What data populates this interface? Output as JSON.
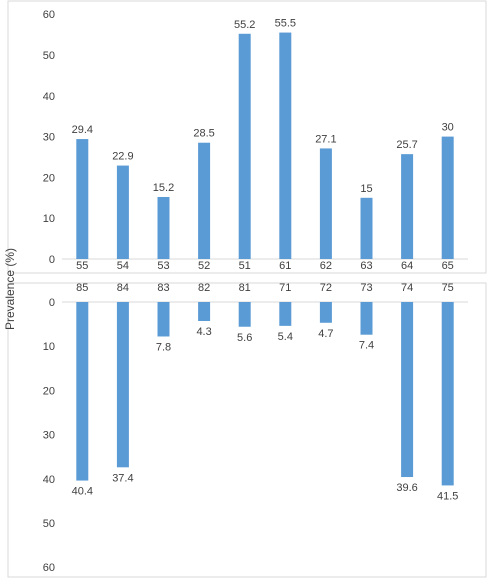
{
  "chart_data": [
    {
      "type": "bar",
      "ylabel": "Prevalence (%)",
      "categories": [
        "55",
        "54",
        "53",
        "52",
        "51",
        "61",
        "62",
        "63",
        "64",
        "65"
      ],
      "values": [
        29.4,
        22.9,
        15.2,
        28.5,
        55.2,
        55.5,
        27.1,
        15,
        25.7,
        30
      ],
      "ylim": [
        0,
        60
      ],
      "yticks": [
        0,
        10,
        20,
        30,
        40,
        50,
        60
      ],
      "orientation": "upward",
      "grid": false,
      "color": "#5b9bd5"
    },
    {
      "type": "bar",
      "categories": [
        "85",
        "84",
        "83",
        "82",
        "81",
        "71",
        "72",
        "73",
        "74",
        "75"
      ],
      "values": [
        40.4,
        37.4,
        7.8,
        4.3,
        5.6,
        5.4,
        4.7,
        7.4,
        39.6,
        41.5
      ],
      "ylim": [
        0,
        60
      ],
      "yticks": [
        0,
        10,
        20,
        30,
        40,
        50,
        60
      ],
      "orientation": "downward",
      "grid": false,
      "color": "#5b9bd5"
    }
  ]
}
